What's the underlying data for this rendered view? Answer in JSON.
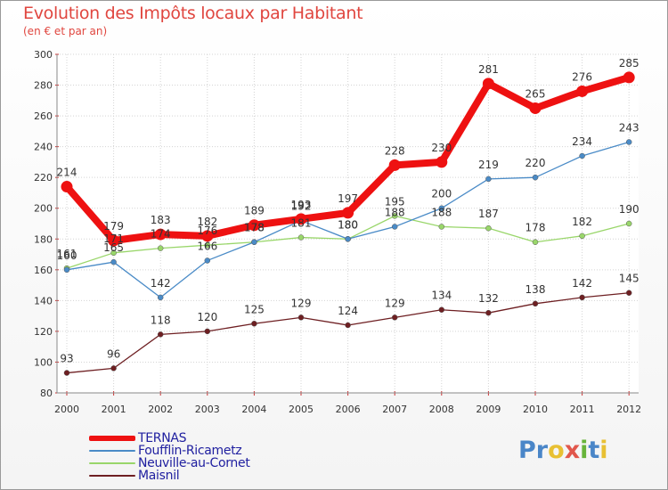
{
  "header": {
    "title": "Evolution des Impôts locaux par Habitant",
    "subtitle": "(en € et par an)"
  },
  "logo": {
    "text": "Proxiti",
    "letters": [
      "P",
      "r",
      "o",
      "x",
      "i",
      "t",
      "i"
    ],
    "colors": [
      "#4a86c8",
      "#4a86c8",
      "#e8c033",
      "#e1574c",
      "#68b43a",
      "#4a86c8",
      "#e8c033"
    ]
  },
  "chart_data": {
    "type": "line",
    "title": "Evolution des Impôts locaux par Habitant",
    "subtitle": "(en € et par an)",
    "xlabel": "",
    "ylabel": "",
    "categories": [
      "2000",
      "2001",
      "2002",
      "2003",
      "2004",
      "2005",
      "2006",
      "2007",
      "2008",
      "2009",
      "2010",
      "2011",
      "2012"
    ],
    "ylim": [
      80,
      300
    ],
    "yticks": [
      80,
      100,
      120,
      140,
      160,
      180,
      200,
      220,
      240,
      260,
      280,
      300
    ],
    "grid": true,
    "legend_position": "bottom-left",
    "series": [
      {
        "name": "TERNAS",
        "color": "#ee1111",
        "values": [
          214,
          179,
          183,
          182,
          189,
          193,
          197,
          228,
          230,
          281,
          265,
          276,
          285
        ]
      },
      {
        "name": "Foufflin-Ricametz",
        "color": "#4a8bc7",
        "values": [
          160,
          165,
          142,
          166,
          178,
          192,
          180,
          188,
          200,
          219,
          220,
          234,
          243
        ]
      },
      {
        "name": "Neuville-au-Cornet",
        "color": "#99d66a",
        "values": [
          161,
          171,
          174,
          176,
          178,
          181,
          180,
          195,
          188,
          187,
          178,
          182,
          190
        ]
      },
      {
        "name": "Maisnil",
        "color": "#6e1f22",
        "values": [
          93,
          96,
          118,
          120,
          125,
          129,
          124,
          129,
          134,
          132,
          138,
          142,
          145
        ]
      }
    ]
  }
}
